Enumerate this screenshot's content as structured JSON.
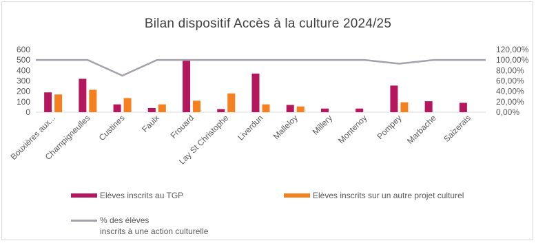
{
  "chart_data": {
    "type": "bar",
    "title": "Bilan dispositif Accès à la culture 2024/25",
    "xlabel": "",
    "ylabel": "",
    "categories": [
      "Bouxières aux...",
      "Champigneulles",
      "Custines",
      "Faulx",
      "Frouard",
      "Lay St Christophe",
      "Liverdun",
      "Malleloy",
      "Millery",
      "Montenoy",
      "Pompey",
      "Marbache",
      "Saizerais"
    ],
    "series": [
      {
        "name": "Elèves inscrits au TGP",
        "type": "bar",
        "axis": "left",
        "color": "#b5175e",
        "values": [
          190,
          320,
          75,
          40,
          500,
          30,
          370,
          70,
          35,
          35,
          255,
          105,
          90
        ]
      },
      {
        "name": "Elèves inscrits sur un autre projet culturel",
        "type": "bar",
        "axis": "left",
        "color": "#f4801f",
        "values": [
          170,
          215,
          135,
          75,
          110,
          180,
          75,
          55,
          null,
          null,
          95,
          null,
          null
        ]
      },
      {
        "name": "% des élèves inscrits à une action culturelle",
        "type": "line",
        "axis": "right",
        "color": "#a6a0aa",
        "values": [
          100,
          100,
          70,
          100,
          100,
          100,
          100,
          100,
          100,
          100,
          93,
          100,
          100
        ]
      }
    ],
    "ylim": [
      0,
      600
    ],
    "y_ticks": [
      "600",
      "500",
      "400",
      "300",
      "200",
      "100",
      "0"
    ],
    "y_tick_values": [
      600,
      500,
      400,
      300,
      200,
      100,
      0
    ],
    "y2lim": [
      0,
      120
    ],
    "y2_ticks": [
      "120,00%",
      "100,00%",
      "80,00%",
      "60,00%",
      "40,00%",
      "20,00%",
      "0,00%"
    ],
    "y2_tick_values": [
      120,
      100,
      80,
      60,
      40,
      20,
      0
    ],
    "grid": false,
    "legend": "bottom",
    "legend_entries": [
      {
        "label": "Elèves inscrits au TGP",
        "color": "#b5175e",
        "kind": "bar"
      },
      {
        "label": "Elèves inscrits sur un autre projet culturel",
        "color": "#f4801f",
        "kind": "bar"
      },
      {
        "label": "% des élèves\ninscrits à une action culturelle",
        "color": "#a6a0aa",
        "kind": "line"
      }
    ]
  }
}
